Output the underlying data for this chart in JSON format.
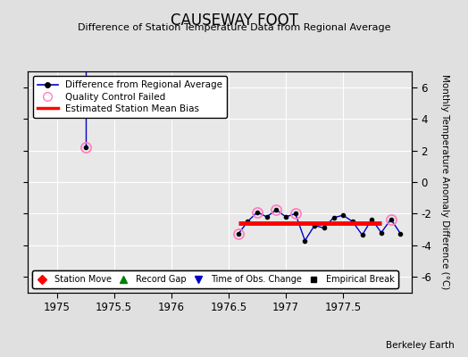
{
  "title": "CAUSEWAY FOOT",
  "subtitle": "Difference of Station Temperature Data from Regional Average",
  "ylabel": "Monthly Temperature Anomaly Difference (°C)",
  "credit": "Berkeley Earth",
  "xlim": [
    1974.75,
    1978.1
  ],
  "ylim": [
    -7,
    7
  ],
  "yticks": [
    -6,
    -4,
    -2,
    0,
    2,
    4,
    6
  ],
  "xticks": [
    1975,
    1975.5,
    1976,
    1976.5,
    1977,
    1977.5
  ],
  "xticklabels": [
    "1975",
    "1975.5",
    "1976",
    "1976.5",
    "1977",
    "1977.5"
  ],
  "bg_color": "#e0e0e0",
  "plot_bg_color": "#e8e8e8",
  "main_line_color": "#0000cc",
  "main_dot_color": "#000000",
  "qc_fail_color": "#ff80c0",
  "bias_line_color": "#ff0000",
  "grid_color": "#ffffff",
  "cluster_x": [
    1976.583,
    1976.667,
    1976.75,
    1976.833,
    1976.917,
    1977.0,
    1977.083,
    1977.167,
    1977.25,
    1977.333,
    1977.417,
    1977.5,
    1977.583,
    1977.667,
    1977.75,
    1977.833,
    1977.917,
    1978.0
  ],
  "cluster_y": [
    -3.3,
    -2.5,
    -1.9,
    -2.2,
    -1.75,
    -2.2,
    -2.0,
    -3.7,
    -2.75,
    -2.9,
    -2.25,
    -2.1,
    -2.5,
    -3.35,
    -2.35,
    -3.2,
    -2.35,
    -3.25
  ],
  "isolated_x": 1975.25,
  "isolated_y": 2.2,
  "qc_fail_x": [
    1975.25,
    1976.583,
    1976.75,
    1976.917,
    1977.083,
    1977.917
  ],
  "qc_fail_y": [
    2.2,
    -3.3,
    -1.9,
    -1.75,
    -2.0,
    -2.35
  ],
  "bias_x_start": 1976.583,
  "bias_x_end": 1977.833,
  "bias_y": -2.6,
  "vertical_line_x": 1975.25,
  "vertical_line_y_top": 7.0,
  "vertical_line_y_bot": 2.2
}
